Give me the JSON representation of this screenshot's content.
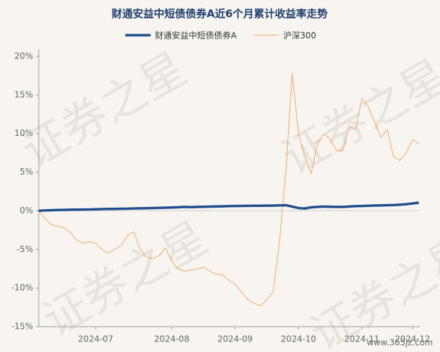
{
  "chart_data": {
    "type": "line",
    "title": "财通安益中短债债券A近6个月累计收益率走势",
    "watermark": "证券之星",
    "source": "www.365jz.com",
    "legend": "top",
    "grid": false,
    "categories": [
      null,
      null,
      null,
      null,
      null,
      null,
      null,
      null,
      null,
      "2024-07",
      null,
      null,
      null,
      null,
      null,
      null,
      null,
      null,
      null,
      null,
      null,
      "2024-08",
      null,
      null,
      null,
      null,
      null,
      null,
      null,
      null,
      null,
      "2024-09",
      null,
      null,
      null,
      null,
      null,
      null,
      null,
      null,
      null,
      "2024-10",
      null,
      null,
      null,
      null,
      null,
      null,
      null,
      null,
      null,
      "2024-11",
      null,
      null,
      null,
      null,
      null,
      null,
      null,
      "2024-12",
      null
    ],
    "ylim": [
      -15,
      20
    ],
    "yticks": [
      {
        "value": -15,
        "label": "-15%"
      },
      {
        "value": -10,
        "label": "-10%"
      },
      {
        "value": -5,
        "label": "-5%"
      },
      {
        "value": 0,
        "label": "0%"
      },
      {
        "value": 5,
        "label": "5%"
      },
      {
        "value": 10,
        "label": "10%"
      },
      {
        "value": 15,
        "label": "15%"
      },
      {
        "value": 20,
        "label": "20%"
      }
    ],
    "series": [
      {
        "name": "财通安益中短债债券A",
        "color": "#1f4e8c",
        "width": 3.5,
        "values": [
          0,
          0.05,
          0.08,
          0.1,
          0.12,
          0.14,
          0.15,
          0.17,
          0.18,
          0.2,
          0.22,
          0.24,
          0.25,
          0.27,
          0.28,
          0.3,
          0.32,
          0.34,
          0.36,
          0.38,
          0.4,
          0.43,
          0.46,
          0.5,
          0.48,
          0.5,
          0.52,
          0.54,
          0.56,
          0.58,
          0.6,
          0.62,
          0.63,
          0.64,
          0.65,
          0.66,
          0.67,
          0.68,
          0.7,
          0.72,
          0.55,
          0.35,
          0.3,
          0.45,
          0.5,
          0.55,
          0.52,
          0.5,
          0.5,
          0.55,
          0.6,
          0.62,
          0.65,
          0.68,
          0.7,
          0.72,
          0.75,
          0.8,
          0.85,
          0.95,
          1.05
        ]
      },
      {
        "name": "沪深300",
        "color": "#f0b27a",
        "width": 1.2,
        "values": [
          0,
          -1,
          -1.8,
          -2,
          -2.2,
          -2.8,
          -3.8,
          -4.2,
          -4,
          -4.2,
          -5,
          -5.5,
          -5,
          -4.5,
          -3.2,
          -2.7,
          -5,
          -6,
          -6.2,
          -5.8,
          -4.8,
          -6.5,
          -7.5,
          -7.8,
          -7.7,
          -7.5,
          -7.3,
          -7.8,
          -8.2,
          -8.3,
          -9,
          -9.5,
          -10.5,
          -11.5,
          -12,
          -12.3,
          -11.5,
          -10.5,
          -4,
          5,
          17.8,
          10,
          7,
          4.8,
          8.8,
          10,
          9.3,
          7.8,
          7.8,
          11,
          10.5,
          14.5,
          13.5,
          11.5,
          9.5,
          10.5,
          7,
          6.5,
          7.5,
          9.2,
          8.7
        ]
      }
    ]
  }
}
